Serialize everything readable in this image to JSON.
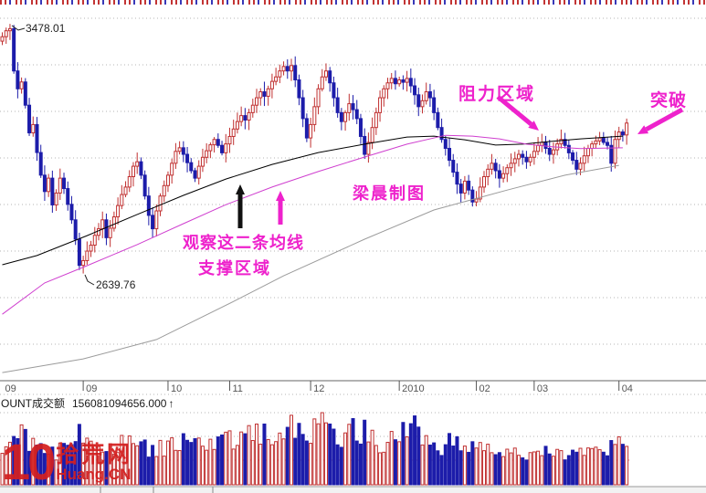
{
  "chart_data": {
    "type": "candlestick",
    "panes": [
      "price",
      "volume"
    ],
    "price_labels": {
      "peak": "3478.01",
      "trough": "2639.76"
    },
    "amount": {
      "label": "OUNT成交额",
      "value": "156081094656.000",
      "arrow": "↑"
    },
    "x_ticks": [
      {
        "label": "09",
        "day": 0
      },
      {
        "label": "09",
        "day": 21
      },
      {
        "label": "10",
        "day": 43
      },
      {
        "label": "11",
        "day": 59
      },
      {
        "label": "12",
        "day": 80
      },
      {
        "label": "2010",
        "day": 103
      },
      {
        "label": "02",
        "day": 123
      },
      {
        "label": "03",
        "day": 138
      },
      {
        "label": "04",
        "day": 160
      }
    ],
    "ylim": [
      2400,
      3500
    ],
    "grid_step_points": 157,
    "first_open": 3420,
    "closes": [
      3435,
      3455,
      3462,
      3320,
      3260,
      3283,
      3205,
      3112,
      3140,
      3046,
      2970,
      2915,
      2960,
      2870,
      2910,
      2960,
      2925,
      2872,
      2820,
      2755,
      2667,
      2683,
      2715,
      2735,
      2768,
      2790,
      2820,
      2760,
      2792,
      2830,
      2868,
      2905,
      2930,
      2965,
      3000,
      3015,
      2970,
      2900,
      2835,
      2790,
      2850,
      2900,
      2935,
      2970,
      3010,
      3050,
      3062,
      3040,
      3012,
      2985,
      2960,
      3000,
      3030,
      3052,
      3072,
      3090,
      3070,
      3045,
      3075,
      3100,
      3125,
      3150,
      3170,
      3155,
      3180,
      3205,
      3230,
      3250,
      3235,
      3260,
      3285,
      3300,
      3320,
      3335,
      3320,
      3338,
      3290,
      3230,
      3160,
      3095,
      3140,
      3200,
      3260,
      3300,
      3320,
      3280,
      3230,
      3180,
      3150,
      3180,
      3210,
      3190,
      3160,
      3100,
      3040,
      3080,
      3130,
      3180,
      3230,
      3260,
      3280,
      3295,
      3277,
      3290,
      3282,
      3295,
      3270,
      3240,
      3200,
      3220,
      3250,
      3230,
      3180,
      3130,
      3090,
      3060,
      3020,
      2980,
      2940,
      2910,
      2950,
      2920,
      2880,
      2890,
      2930,
      2965,
      2990,
      3010,
      2985,
      2960,
      2975,
      2995,
      3010,
      3025,
      3040,
      3030,
      3015,
      3030,
      3050,
      3070,
      3080,
      3060,
      3040,
      3055,
      3075,
      3090,
      3070,
      3045,
      3020,
      2990,
      3010,
      3035,
      3060,
      3075,
      3085,
      3095,
      3080,
      3070,
      3010,
      3090,
      3115,
      3105,
      3145
    ],
    "wick_overrides": {
      "2": {
        "high": 3478.01
      },
      "21": {
        "low": 2639.76
      },
      "75": {
        "high": 3361
      },
      "162": {
        "high": 3160
      }
    },
    "ma_lines": [
      {
        "name": "ma-fast-black",
        "color_key": "ma_black",
        "points": [
          [
            0,
            2669
          ],
          [
            9,
            2700
          ],
          [
            22,
            2767
          ],
          [
            35,
            2838
          ],
          [
            47,
            2902
          ],
          [
            58,
            2957
          ],
          [
            70,
            3006
          ],
          [
            82,
            3046
          ],
          [
            94,
            3074
          ],
          [
            105,
            3098
          ],
          [
            112,
            3101
          ],
          [
            120,
            3089
          ],
          [
            128,
            3071
          ],
          [
            135,
            3074
          ],
          [
            142,
            3083
          ],
          [
            150,
            3092
          ],
          [
            161,
            3101
          ]
        ]
      },
      {
        "name": "ma-mid-magenta",
        "color_key": "ma_magenta",
        "points": [
          [
            0,
            2503
          ],
          [
            11,
            2608
          ],
          [
            22,
            2666
          ],
          [
            35,
            2737
          ],
          [
            47,
            2807
          ],
          [
            58,
            2871
          ],
          [
            70,
            2930
          ],
          [
            82,
            2982
          ],
          [
            94,
            3031
          ],
          [
            105,
            3074
          ],
          [
            115,
            3104
          ],
          [
            122,
            3101
          ],
          [
            129,
            3092
          ],
          [
            136,
            3074
          ],
          [
            143,
            3065
          ],
          [
            150,
            3059
          ],
          [
            161,
            3062
          ]
        ]
      },
      {
        "name": "ma-slow-gray",
        "color_key": "ma_gray",
        "points": [
          [
            0,
            2307
          ],
          [
            21,
            2353
          ],
          [
            40,
            2418
          ],
          [
            60,
            2546
          ],
          [
            73,
            2632
          ],
          [
            94,
            2755
          ],
          [
            112,
            2853
          ],
          [
            131,
            2920
          ],
          [
            146,
            2970
          ],
          [
            160,
            3003
          ]
        ]
      }
    ],
    "volume_anchors": [
      [
        0,
        45
      ],
      [
        5,
        55
      ],
      [
        10,
        40
      ],
      [
        15,
        36
      ],
      [
        20,
        52
      ],
      [
        25,
        36
      ],
      [
        30,
        42
      ],
      [
        35,
        46
      ],
      [
        40,
        36
      ],
      [
        45,
        50
      ],
      [
        50,
        40
      ],
      [
        55,
        46
      ],
      [
        60,
        50
      ],
      [
        65,
        56
      ],
      [
        70,
        60
      ],
      [
        75,
        66
      ],
      [
        78,
        50
      ],
      [
        82,
        72
      ],
      [
        83,
        78
      ],
      [
        85,
        62
      ],
      [
        88,
        55
      ],
      [
        92,
        66
      ],
      [
        95,
        50
      ],
      [
        100,
        46
      ],
      [
        103,
        52
      ],
      [
        106,
        72
      ],
      [
        110,
        48
      ],
      [
        113,
        40
      ],
      [
        116,
        46
      ],
      [
        120,
        42
      ],
      [
        123,
        38
      ],
      [
        126,
        42
      ],
      [
        130,
        38
      ],
      [
        134,
        34
      ],
      [
        137,
        32
      ],
      [
        140,
        36
      ],
      [
        143,
        40
      ],
      [
        146,
        34
      ],
      [
        149,
        30
      ],
      [
        152,
        34
      ],
      [
        155,
        40
      ],
      [
        157,
        44
      ],
      [
        159,
        56
      ],
      [
        161,
        46
      ],
      [
        162,
        52
      ]
    ],
    "annotations": {
      "resistance": "阻力区域",
      "breakout": "突破",
      "credit": "梁晨制图",
      "observe_line1": "观察这二条均线",
      "observe_line2": "支撑区域"
    },
    "watermark": {
      "number": "10",
      "cn": "拾荒网",
      "en": "Huang.CN"
    }
  },
  "colors": {
    "up": "#c03030",
    "down": "#1c1caa",
    "ma_black": "#000000",
    "ma_magenta": "#cf3fcf",
    "ma_gray": "#9b9b9b",
    "annotation": "#ee22cc",
    "arrow_black": "#111111",
    "grid": "#b5b5b5",
    "axis_line": "#666666",
    "axis_text": "#555555",
    "label_text": "#222222",
    "logo_red": "#d42020",
    "vol_dash": "#e58585"
  }
}
